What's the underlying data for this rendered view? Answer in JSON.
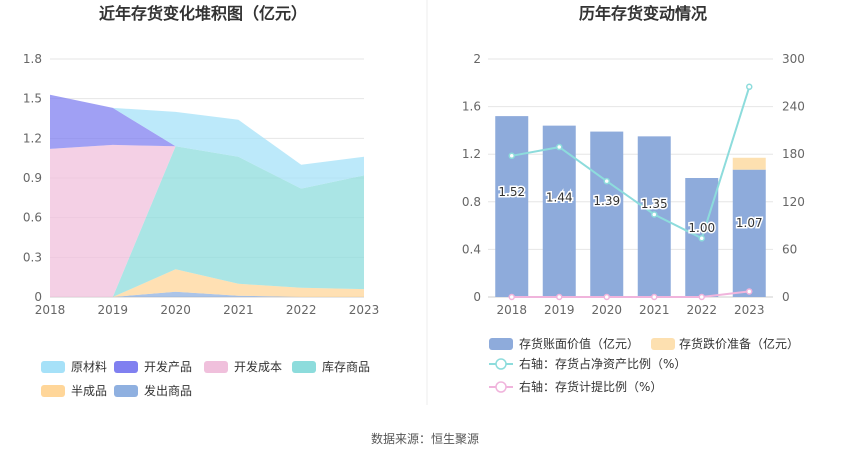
{
  "source": "数据来源：恒生聚源",
  "chart_data": [
    {
      "type": "area",
      "stacked": true,
      "title": "近年存货变化堆积图（亿元）",
      "x": [
        "2018",
        "2019",
        "2020",
        "2021",
        "2022",
        "2023"
      ],
      "ylim": [
        0,
        1.8
      ],
      "yticks": [
        "0",
        "0.3",
        "0.6",
        "0.9",
        "1.2",
        "1.5",
        "1.8"
      ],
      "grid": true,
      "legend_position": "bottom",
      "series": [
        {
          "name": "原材料",
          "color": "#a6e1f8",
          "values": [
            0,
            0,
            0.26,
            0.28,
            0.18,
            0.14
          ]
        },
        {
          "name": "开发产品",
          "color": "#8080f0",
          "values": [
            0.41,
            0.28,
            0,
            0,
            0,
            0
          ]
        },
        {
          "name": "开发成本",
          "color": "#f0c0dc",
          "values": [
            1.12,
            1.15,
            0,
            0,
            0,
            0
          ]
        },
        {
          "name": "库存商品",
          "color": "#8ddcdc",
          "values": [
            0,
            0,
            0.93,
            0.96,
            0.75,
            0.86
          ]
        },
        {
          "name": "半成品",
          "color": "#ffd699",
          "values": [
            0,
            0,
            0.17,
            0.09,
            0.07,
            0.06
          ]
        },
        {
          "name": "发出商品",
          "color": "#8fb0e0",
          "values": [
            0,
            0,
            0.04,
            0.01,
            0,
            0
          ]
        }
      ]
    },
    {
      "type": "bar",
      "stacked": true,
      "title": "历年存货变动情况",
      "categories": [
        "2018",
        "2019",
        "2020",
        "2021",
        "2022",
        "2023"
      ],
      "ylim": [
        0,
        2
      ],
      "yticks": [
        "0",
        "0.4",
        "0.8",
        "1.2",
        "1.6",
        "2"
      ],
      "y2lim": [
        0,
        300
      ],
      "y2ticks": [
        "0",
        "60",
        "120",
        "180",
        "240",
        "300"
      ],
      "grid": true,
      "legend_position": "bottom",
      "series": [
        {
          "name": "存货账面价值（亿元）",
          "kind": "bar",
          "color": "#8eabdb",
          "values": [
            1.52,
            1.44,
            1.39,
            1.35,
            1.0,
            1.07
          ],
          "labels": [
            "1.52",
            "1.44",
            "1.39",
            "1.35",
            "1.00",
            "1.07"
          ]
        },
        {
          "name": "存货跌价准备（亿元）",
          "kind": "bar",
          "color": "#fde0b0",
          "values": [
            0,
            0,
            0,
            0,
            0,
            0.1
          ]
        },
        {
          "name": "右轴：存货占净资产比例（%）",
          "kind": "line",
          "axis": "right",
          "color": "#8ddcdc",
          "values": [
            178,
            189,
            146,
            104,
            74,
            265
          ]
        },
        {
          "name": "右轴：存货计提比例（%）",
          "kind": "line",
          "axis": "right",
          "color": "#f0b4dc",
          "values": [
            0,
            0,
            0,
            0,
            0,
            7
          ]
        }
      ]
    }
  ]
}
